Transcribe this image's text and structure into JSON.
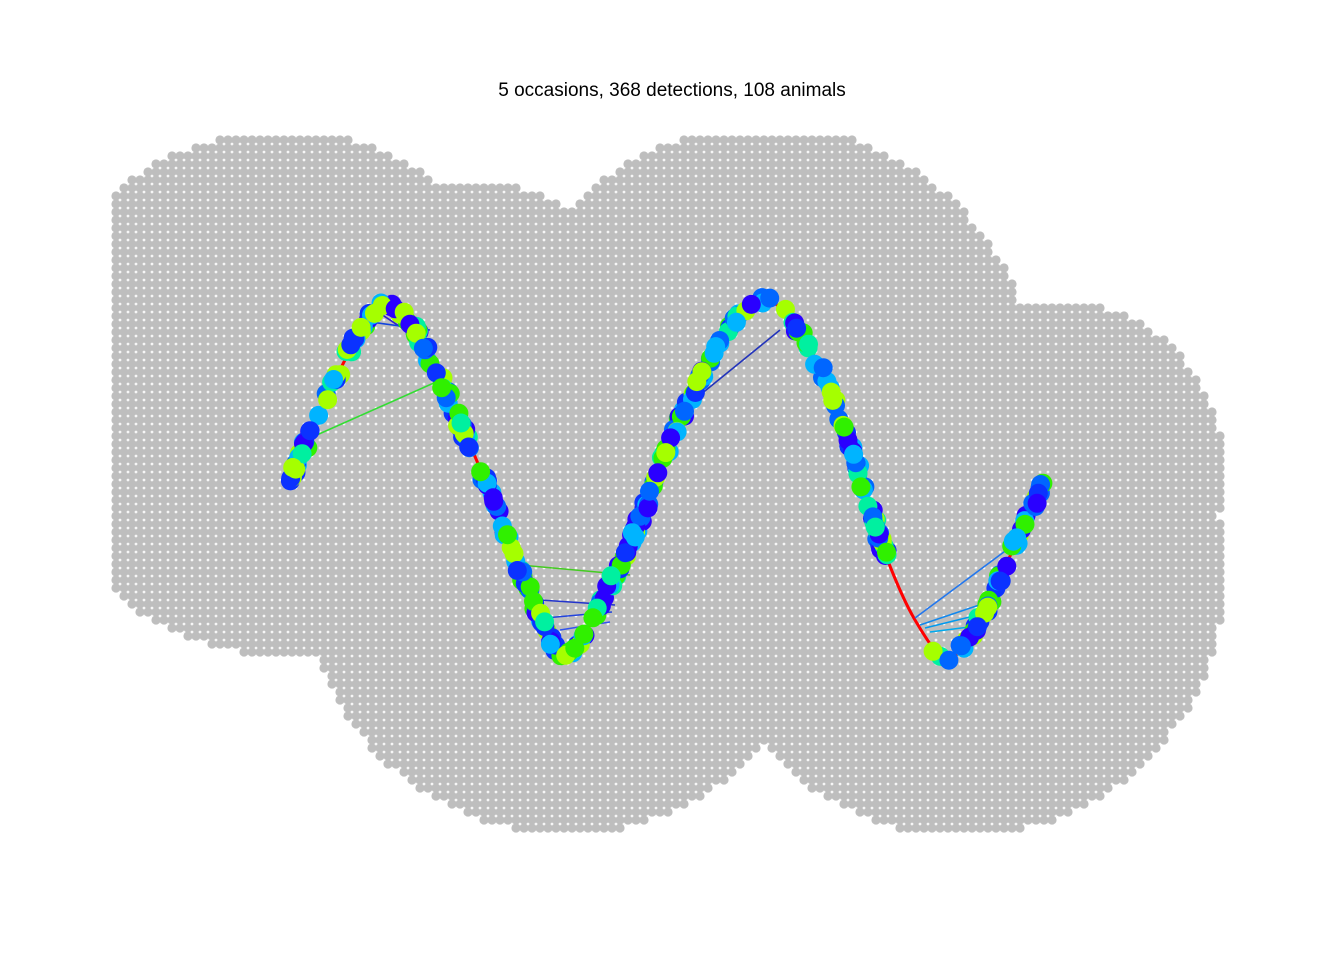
{
  "chart_data": {
    "type": "scatter",
    "title": "5 occasions, 368 detections, 108 animals",
    "xlabel": "",
    "ylabel": "",
    "axes_shown": false,
    "grid": false,
    "mask": {
      "description_key": "habitat mask",
      "color": "#bebebe",
      "spacing": 8,
      "regions": [
        {
          "cx": 282,
          "cy": 393,
          "r": 262
        },
        {
          "cx": 462,
          "cy": 400,
          "r": 220
        },
        {
          "cx": 566,
          "cy": 572,
          "r": 262
        },
        {
          "cx": 766,
          "cy": 398,
          "r": 272
        },
        {
          "cx": 963,
          "cy": 574,
          "r": 262
        },
        {
          "cx": 1055,
          "cy": 470,
          "r": 170
        }
      ]
    },
    "detector_line": {
      "description_key": "transect",
      "x": [
        290,
        330,
        375,
        405,
        440,
        485,
        530,
        565,
        600,
        640,
        680,
        725,
        765,
        805,
        845,
        880,
        915,
        950,
        985,
        1015,
        1045
      ],
      "y": [
        480,
        390,
        310,
        315,
        380,
        480,
        595,
        655,
        605,
        520,
        420,
        335,
        300,
        340,
        430,
        540,
        620,
        658,
        610,
        545,
        480
      ],
      "color": "#ff0000"
    },
    "detections": {
      "palette": [
        "#2a00ff",
        "#0b32ff",
        "#0066ff",
        "#00b4ff",
        "#00f0a0",
        "#30f000",
        "#a5ff00"
      ],
      "count": 368
    },
    "movement_lines": [
      {
        "x1": 310,
        "y1": 438,
        "x2": 445,
        "y2": 378,
        "color": "#33dd33"
      },
      {
        "x1": 378,
        "y1": 312,
        "x2": 420,
        "y2": 340,
        "color": "#3322cc"
      },
      {
        "x1": 370,
        "y1": 322,
        "x2": 430,
        "y2": 330,
        "color": "#1144dd"
      },
      {
        "x1": 520,
        "y1": 565,
        "x2": 630,
        "y2": 575,
        "color": "#44cc22"
      },
      {
        "x1": 540,
        "y1": 600,
        "x2": 615,
        "y2": 605,
        "color": "#2233cc"
      },
      {
        "x1": 545,
        "y1": 618,
        "x2": 612,
        "y2": 612,
        "color": "#2244dd"
      },
      {
        "x1": 560,
        "y1": 630,
        "x2": 610,
        "y2": 622,
        "color": "#3355ee"
      },
      {
        "x1": 700,
        "y1": 395,
        "x2": 780,
        "y2": 330,
        "color": "#2233bb"
      },
      {
        "x1": 915,
        "y1": 618,
        "x2": 1020,
        "y2": 540,
        "color": "#2277ee"
      },
      {
        "x1": 920,
        "y1": 625,
        "x2": 1000,
        "y2": 598,
        "color": "#1188ee"
      },
      {
        "x1": 925,
        "y1": 628,
        "x2": 990,
        "y2": 612,
        "color": "#0099ee"
      },
      {
        "x1": 930,
        "y1": 632,
        "x2": 985,
        "y2": 625,
        "color": "#00aaee"
      }
    ]
  }
}
